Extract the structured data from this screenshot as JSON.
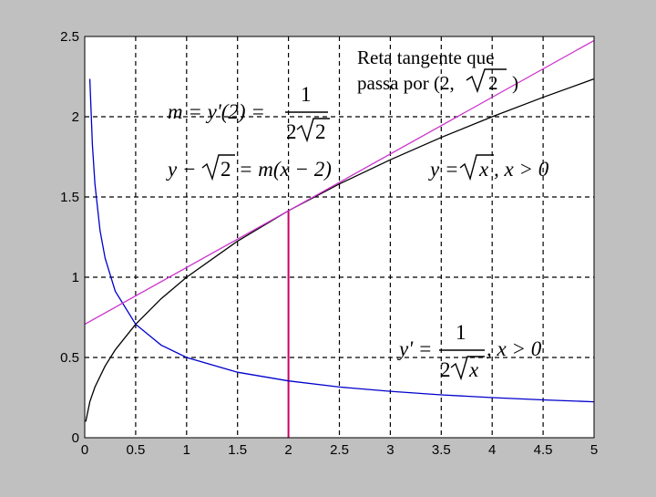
{
  "chart_data": {
    "type": "line",
    "title": "",
    "xlabel": "",
    "ylabel": "",
    "xlim": [
      0,
      5
    ],
    "ylim": [
      0,
      2.5
    ],
    "grid": true,
    "x_ticks": [
      0,
      0.5,
      1,
      1.5,
      2,
      2.5,
      3,
      3.5,
      4,
      4.5,
      5
    ],
    "x_tick_labels": [
      "0",
      "0.5",
      "1",
      "1.5",
      "2",
      "2.5",
      "3",
      "3.5",
      "4",
      "4.5",
      "5"
    ],
    "y_ticks": [
      0,
      0.5,
      1,
      1.5,
      2,
      2.5
    ],
    "y_tick_labels": [
      "0",
      "0.5",
      "1",
      "1.5",
      "2",
      "2.5"
    ],
    "series": [
      {
        "color": "#000000",
        "x": [
          0.01,
          0.05,
          0.1,
          0.2,
          0.3,
          0.5,
          0.75,
          1,
          1.5,
          2,
          2.5,
          3,
          3.5,
          4,
          4.5,
          5
        ],
        "y": [
          0.1,
          0.224,
          0.316,
          0.447,
          0.548,
          0.707,
          0.866,
          1,
          1.225,
          1.414,
          1.581,
          1.732,
          1.871,
          2,
          2.121,
          2.236
        ]
      },
      {
        "color": "#0000cc",
        "x": [
          0.05,
          0.075,
          0.1,
          0.15,
          0.2,
          0.3,
          0.5,
          0.75,
          1,
          1.5,
          2,
          2.5,
          3,
          3.5,
          4,
          4.5,
          5
        ],
        "y": [
          2.236,
          1.826,
          1.581,
          1.291,
          1.118,
          0.913,
          0.707,
          0.577,
          0.5,
          0.408,
          0.354,
          0.316,
          0.289,
          0.267,
          0.25,
          0.236,
          0.224
        ]
      },
      {
        "color": "#cc33cc",
        "x": [
          0,
          5
        ],
        "y": [
          0.707,
          2.475
        ]
      }
    ],
    "vertical_marker": {
      "x": 2,
      "y_from": 0,
      "y_to": 1.414,
      "color": "#cc0066"
    },
    "annotations": {
      "tangent_label_line1": "Reta tangente que",
      "tangent_label_line2_prefix": "passa por (2,",
      "tangent_label_line2_radicand": "2",
      "tangent_label_line2_suffix": ")",
      "slope_eq_lhs": "m = y'(2) =",
      "slope_eq_num": "1",
      "slope_eq_den_coef": "2",
      "slope_eq_den_radicand": "2",
      "tangent_eq_prefix": "y −",
      "tangent_eq_radicand": "2",
      "tangent_eq_suffix": "= m(x − 2)",
      "func_eq_prefix": "y =",
      "func_eq_radicand": "x",
      "func_eq_suffix": ", x > 0",
      "deriv_eq_lhs": "y' =",
      "deriv_eq_num": "1",
      "deriv_eq_den_coef": "2",
      "deriv_eq_den_radicand": "x",
      "deriv_eq_suffix": ", x > 0"
    }
  }
}
